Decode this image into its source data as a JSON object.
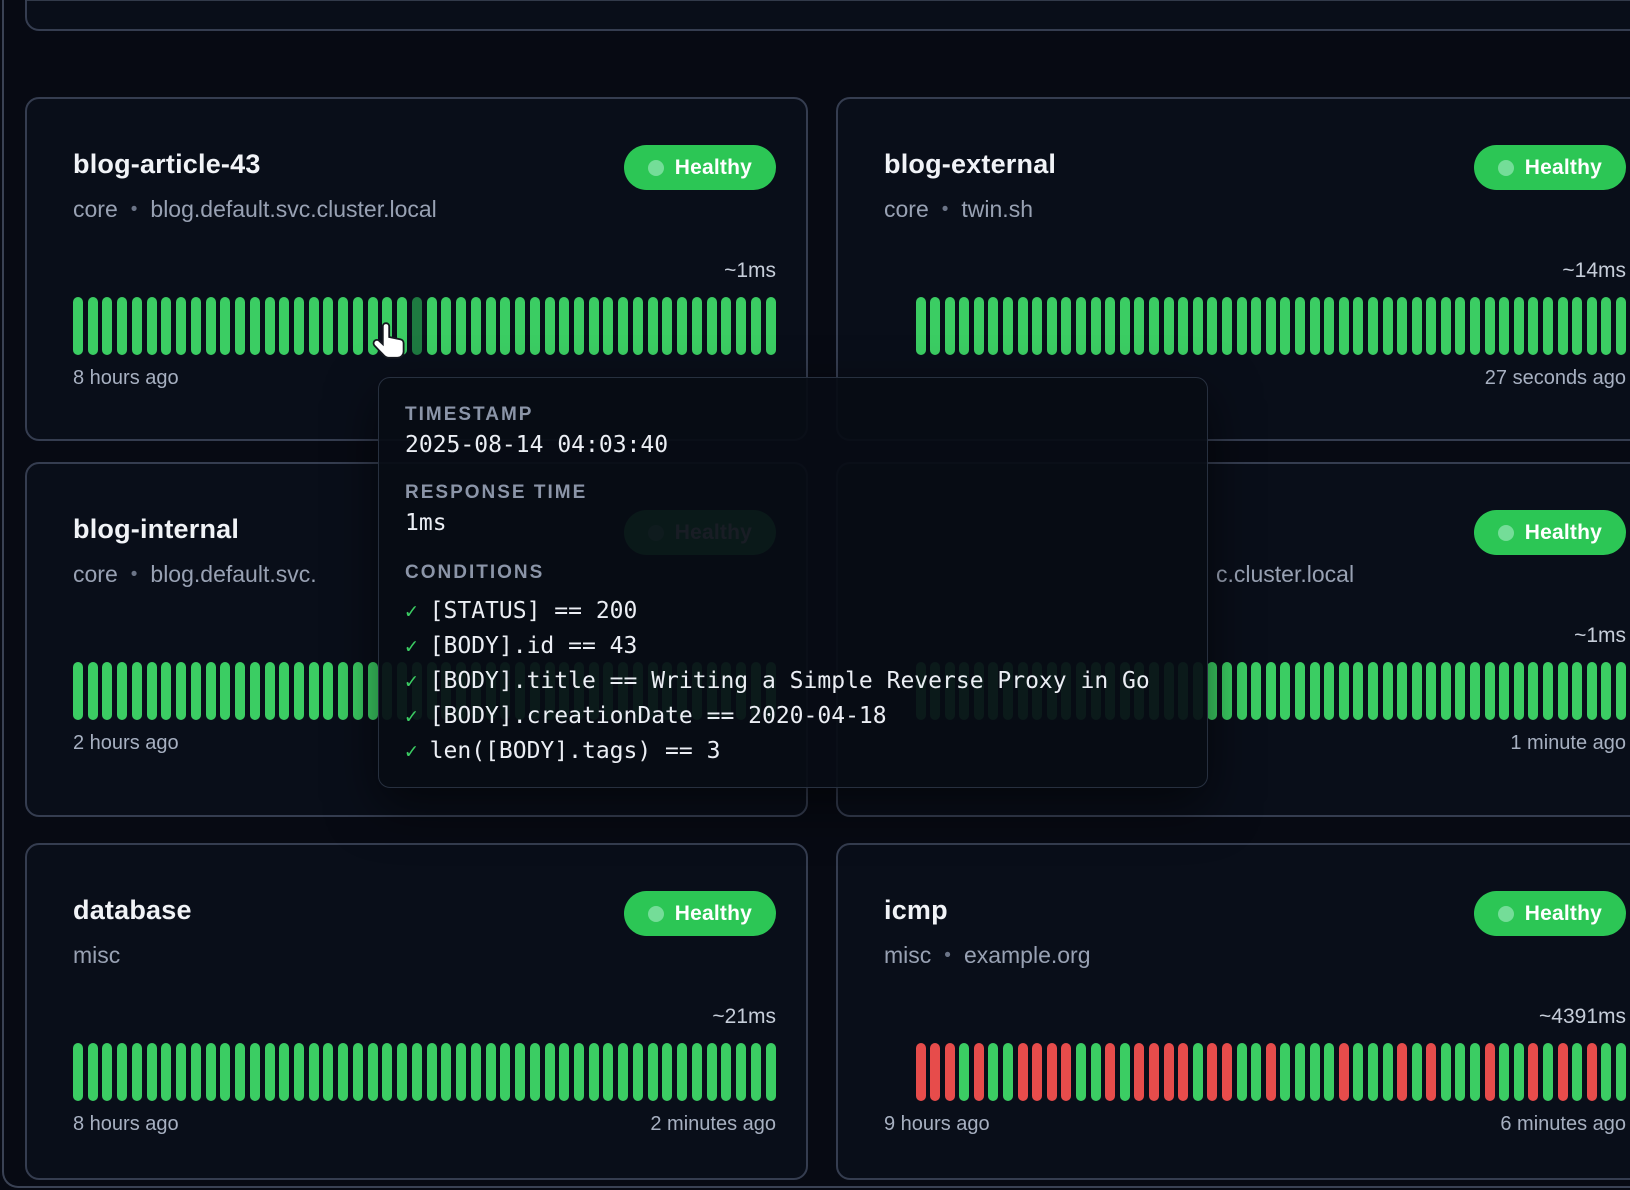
{
  "status_colors": {
    "up": "#3bcd63",
    "down": "#e74c4b",
    "hovered_bar": "#1e7a41",
    "badge_bg": "#2cc655",
    "badge_dot": "#74dd98"
  },
  "cards": [
    {
      "title": "blog-article-43",
      "group": "core",
      "separator": "•",
      "target": "blog.default.svc.cluster.local",
      "status_badge": "Healthy",
      "response_time": "~1ms",
      "footer_left": "8 hours ago",
      "footer_right": "",
      "row": 1,
      "side": "left",
      "bars": [
        [
          "up",
          23
        ],
        [
          "hovered",
          1
        ],
        [
          "up",
          24
        ]
      ]
    },
    {
      "title": "blog-external",
      "group": "core",
      "separator": "•",
      "target": "twin.sh",
      "status_badge": "Healthy",
      "response_time": "~14ms",
      "footer_left": "",
      "footer_right": "27 seconds ago",
      "row": 1,
      "side": "right",
      "bars": [
        [
          "up",
          49
        ]
      ]
    },
    {
      "title": "blog-internal",
      "group": "core",
      "separator": "•",
      "target": "blog.default.svc.",
      "status_badge": "Healthy",
      "response_time": "",
      "footer_left": "2 hours ago",
      "footer_right": "",
      "row": 2,
      "side": "left",
      "bars": [
        [
          "up",
          48
        ]
      ]
    },
    {
      "title": "",
      "group": "",
      "separator": "",
      "target": "c.cluster.local",
      "subtitle_is_fragment": true,
      "status_badge": "Healthy",
      "response_time": "~1ms",
      "footer_left": "",
      "footer_right": "1 minute ago",
      "row": 2,
      "side": "right",
      "bars": [
        [
          "up",
          49
        ]
      ]
    },
    {
      "title": "database",
      "group": "misc",
      "separator": "",
      "target": "",
      "status_badge": "Healthy",
      "response_time": "~21ms",
      "footer_left": "8 hours ago",
      "footer_right": "2 minutes ago",
      "row": 3,
      "side": "left",
      "bars": [
        [
          "up",
          48
        ]
      ]
    },
    {
      "title": "icmp",
      "group": "misc",
      "separator": "•",
      "target": "example.org",
      "status_badge": "Healthy",
      "response_time": "~4391ms",
      "footer_left": "9 hours ago",
      "footer_right": "6 minutes ago",
      "row": 3,
      "side": "right",
      "bars": [
        [
          "down",
          3
        ],
        [
          "up",
          1
        ],
        [
          "down",
          1
        ],
        [
          "up",
          2
        ],
        [
          "down",
          4
        ],
        [
          "up",
          2
        ],
        [
          "down",
          1
        ],
        [
          "up",
          1
        ],
        [
          "down",
          4
        ],
        [
          "up",
          1
        ],
        [
          "down",
          2
        ],
        [
          "up",
          2
        ],
        [
          "down",
          1
        ],
        [
          "up",
          4
        ],
        [
          "down",
          1
        ],
        [
          "up",
          3
        ],
        [
          "down",
          1
        ],
        [
          "up",
          1
        ],
        [
          "down",
          1
        ],
        [
          "up",
          3
        ],
        [
          "down",
          1
        ],
        [
          "up",
          2
        ],
        [
          "down",
          1
        ],
        [
          "up",
          1
        ],
        [
          "down",
          1
        ],
        [
          "up",
          1
        ],
        [
          "down",
          1
        ],
        [
          "up",
          2
        ]
      ]
    }
  ],
  "tooltip": {
    "timestamp_label": "TIMESTAMP",
    "timestamp": "2025-08-14 04:03:40",
    "response_label": "RESPONSE TIME",
    "response": "1ms",
    "conditions_label": "CONDITIONS",
    "check_icon": "✓",
    "conditions": [
      "[STATUS] == 200",
      "[BODY].id == 43",
      "[BODY].title == Writing a Simple Reverse Proxy in Go",
      "[BODY].creationDate == 2020-04-18",
      "len([BODY].tags) == 3"
    ]
  },
  "cursor": {
    "icon": "pointer-hand"
  }
}
